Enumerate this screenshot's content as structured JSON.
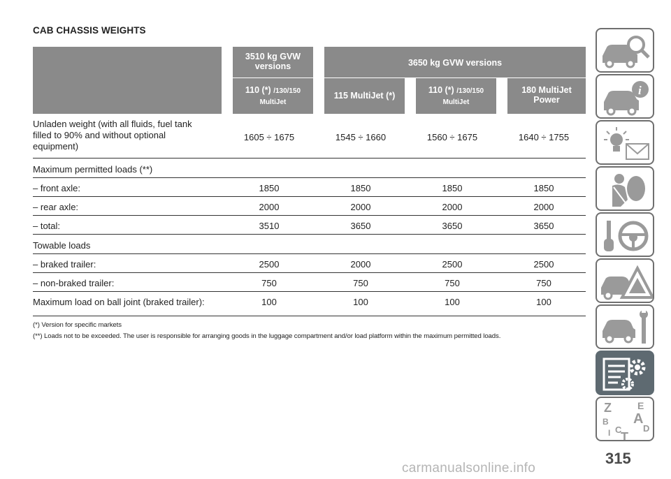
{
  "title": "CAB CHASSIS WEIGHTS",
  "headers": {
    "group_3510": "3510 kg GVW versions",
    "group_3650": "3650 kg GVW versions",
    "col1_a": "110 (*) ",
    "col1_b": "/130/150",
    "col1_c": "MultiJet",
    "col2": "115 MultiJet (*)",
    "col3_a": "110 (*) ",
    "col3_b": "/130/150",
    "col3_c": "MultiJet",
    "col4_a": "180 MultiJet",
    "col4_b": "Power"
  },
  "rows": [
    {
      "label_1": "Unladen weight (with all fluids, fuel tank",
      "label_2": "filled to 90% and without optional",
      "label_3": "equipment)",
      "values": [
        "1605 ÷ 1675",
        "1545 ÷ 1660",
        "1560 ÷ 1675",
        "1640 ÷ 1755"
      ]
    },
    {
      "label": "Maximum permitted loads (**)"
    },
    {
      "label": "– front axle:",
      "values": [
        "1850",
        "1850",
        "1850",
        "1850"
      ]
    },
    {
      "label": "– rear axle:",
      "values": [
        "2000",
        "2000",
        "2000",
        "2000"
      ]
    },
    {
      "label": "– total:",
      "values": [
        "3510",
        "3650",
        "3650",
        "3650"
      ]
    },
    {
      "label": "Towable loads"
    },
    {
      "label": "– braked trailer:",
      "values": [
        "2500",
        "2000",
        "2500",
        "2500"
      ]
    },
    {
      "label": "– non-braked trailer:",
      "values": [
        "750",
        "750",
        "750",
        "750"
      ]
    },
    {
      "label": "Maximum load on ball joint (braked trailer):",
      "values": [
        "100",
        "100",
        "100",
        "100"
      ]
    }
  ],
  "notes": {
    "note1": "(*) Version for specific markets",
    "note2": "(**) Loads not to be exceeded. The user is responsible for arranging goods in the luggage compartment and/or load platform within the maximum permitted loads."
  },
  "sidebar": {
    "tabs": [
      {
        "icon": "car-magnifier-icon"
      },
      {
        "icon": "car-info-icon"
      },
      {
        "icon": "warning-light-envelope-icon"
      },
      {
        "icon": "seatbelt-airbag-icon"
      },
      {
        "icon": "key-steering-wheel-icon"
      },
      {
        "icon": "car-breakdown-warning-icon"
      },
      {
        "icon": "car-service-tools-icon"
      },
      {
        "icon": "technical-data-gear-icon",
        "active": true
      },
      {
        "icon": "alphabetical-index-icon"
      }
    ],
    "index_letters": [
      "Z",
      "E",
      "B",
      "A",
      "C",
      "D",
      "I",
      "T"
    ]
  },
  "page_number": "315",
  "watermark": "carmanualsonline.info",
  "colors": {
    "header_bg": "#8a8a8a",
    "active_tab": "#5e6a71",
    "tab_border": "#6f6f6f"
  }
}
